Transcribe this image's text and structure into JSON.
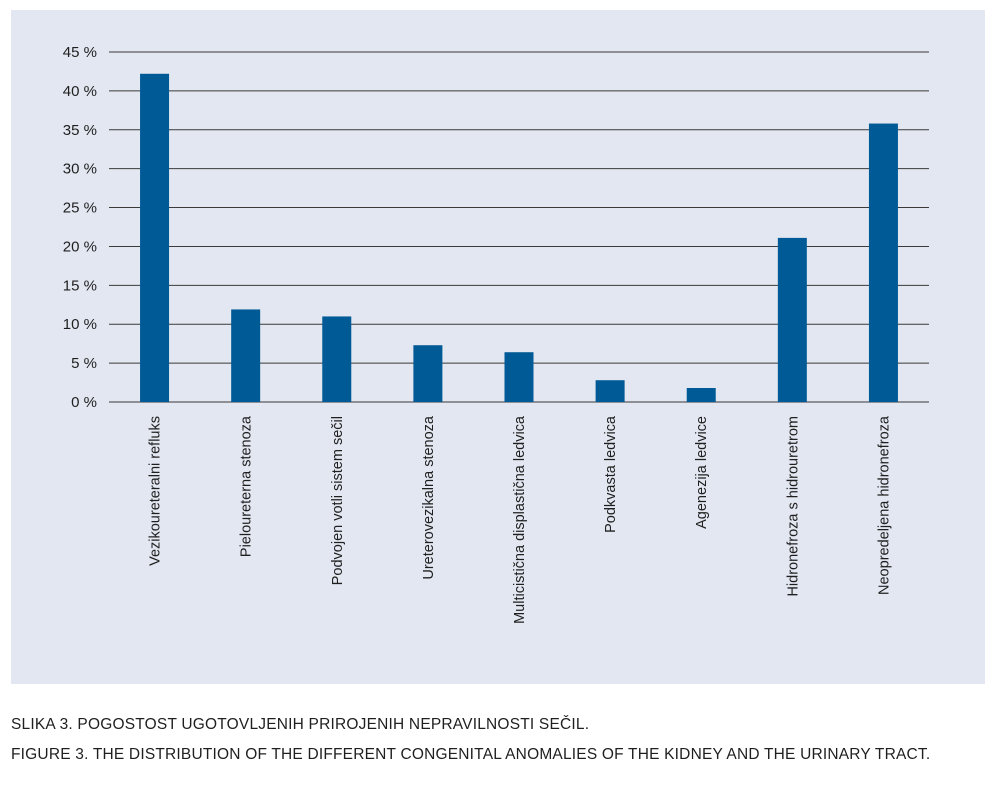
{
  "chart_data": {
    "type": "bar",
    "categories": [
      "Vezikoureteralni refluks",
      "Pieloureterna stenoza",
      "Podvojen votli sistem sečil",
      "Ureterovezikalna stenoza",
      "Multicistična displastična ledvica",
      "Podkvasta ledvica",
      "Agenezija ledvice",
      "Hidronefroza s hidrouretrom",
      "Neopredeljena hidronefroza"
    ],
    "values": [
      42.2,
      11.9,
      11.0,
      7.3,
      6.4,
      2.8,
      1.8,
      21.1,
      35.8
    ],
    "ylim": [
      0,
      45
    ],
    "yticks": [
      0,
      5,
      10,
      15,
      20,
      25,
      30,
      35,
      40,
      45
    ],
    "ytick_labels": [
      "0 %",
      "5 %",
      "10 %",
      "15 %",
      "20 %",
      "25 %",
      "30 %",
      "35 %",
      "40 %",
      "45 %"
    ],
    "grid": true,
    "bar_color": "#005a96"
  },
  "captions": {
    "slovenian": "SLIKA 3. POGOSTOST UGOTOVLJENIH PRIROJENIH NEPRAVILNOSTI SEČIL.",
    "english": "FIGURE 3. THE DISTRIBUTION OF THE DIFFERENT CONGENITAL ANOMALIES OF THE KIDNEY AND THE URINARY TRACT."
  },
  "colors": {
    "panel_background": "#e3e7f1",
    "gridline": "#3a3a3a",
    "text": "#1f1f1f"
  }
}
